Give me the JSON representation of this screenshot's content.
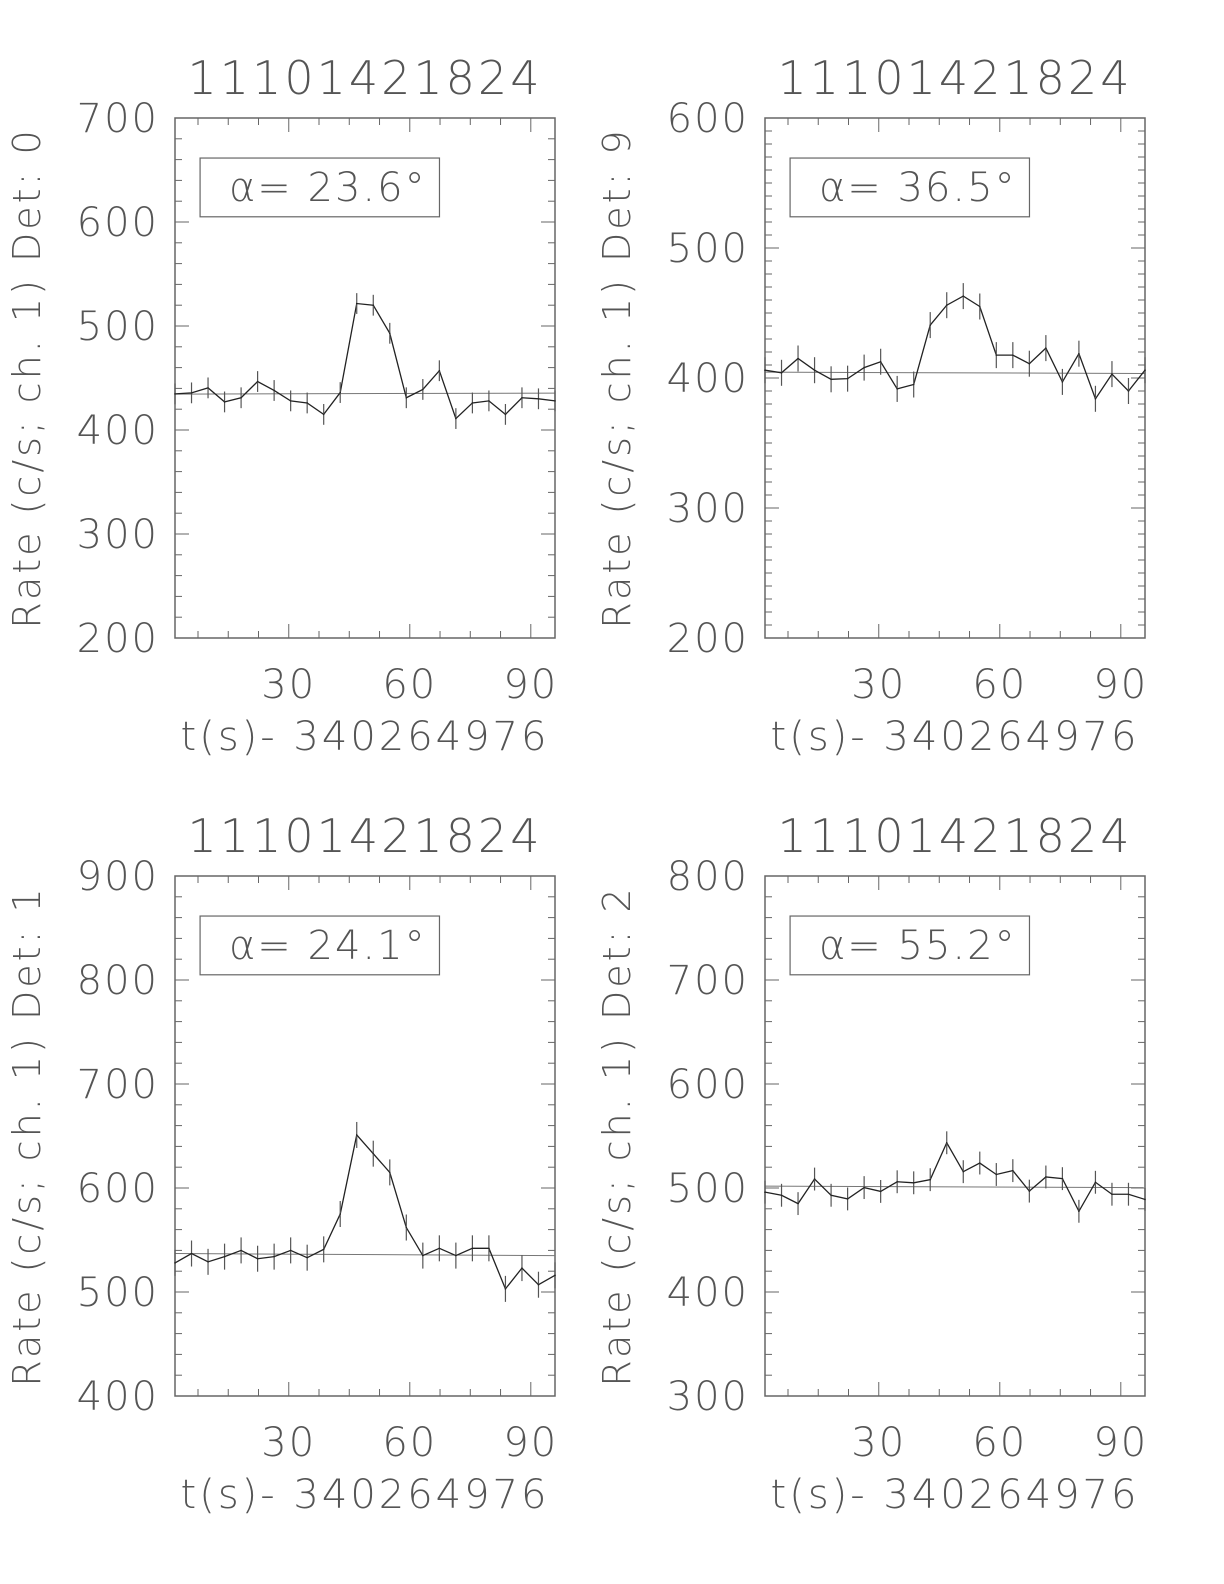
{
  "chart_data": [
    {
      "type": "line",
      "title": "11101421824",
      "xlabel": "t(s)- 340264976",
      "ylabel": "Rate (c/s; ch. 1) Det: 0",
      "annotation": "α= 23.6°",
      "xlim": [
        1.8,
        96
      ],
      "ylim": [
        200,
        700
      ],
      "xticks": [
        30,
        60,
        90
      ],
      "yticks": [
        200,
        300,
        400,
        500,
        600,
        700
      ],
      "yminor": 20,
      "yerr": 10,
      "fit": [
        434.5,
        435.5
      ],
      "y": [
        434.7,
        435.7,
        440.5,
        427,
        431,
        446.6,
        438,
        428,
        426,
        415,
        436,
        521.6,
        520,
        493,
        431,
        439,
        457,
        411,
        426,
        428,
        415,
        431,
        430,
        428
      ]
    },
    {
      "type": "line",
      "title": "11101421824",
      "xlabel": "t(s)- 340264976",
      "ylabel": "Rate (c/s; ch. 1) Det: 9",
      "annotation": "α= 36.5°",
      "xlim": [
        1.8,
        96
      ],
      "ylim": [
        200,
        600
      ],
      "xticks": [
        30,
        60,
        90
      ],
      "yticks": [
        200,
        300,
        400,
        500,
        600
      ],
      "yminor": 10,
      "yerr": 10,
      "fit": [
        404.5,
        403.5
      ],
      "y": [
        406,
        404,
        415,
        406,
        399,
        399.5,
        408,
        412.5,
        391.6,
        395,
        440.7,
        456,
        463,
        455,
        417.6,
        417.6,
        411,
        423,
        397,
        418.7,
        384,
        403,
        390,
        406
      ]
    },
    {
      "type": "line",
      "title": "11101421824",
      "xlabel": "t(s)- 340264976",
      "ylabel": "Rate (c/s; ch. 1) Det: 1",
      "annotation": "α= 24.1°",
      "xlim": [
        1.8,
        96
      ],
      "ylim": [
        400,
        900
      ],
      "xticks": [
        30,
        60,
        90
      ],
      "yticks": [
        400,
        500,
        600,
        700,
        800,
        900
      ],
      "yminor": 20,
      "yerr": 12.5,
      "fit": [
        537,
        535
      ],
      "y": [
        528,
        537,
        529,
        534,
        540,
        532,
        534,
        540,
        533,
        541,
        575,
        651,
        633,
        615,
        562,
        535,
        542,
        535,
        542,
        542,
        503,
        523,
        507,
        516
      ]
    },
    {
      "type": "line",
      "title": "11101421824",
      "xlabel": "t(s)- 340264976",
      "ylabel": "Rate (c/s; ch. 1) Det: 2",
      "annotation": "α= 55.2°",
      "xlim": [
        1.8,
        96
      ],
      "ylim": [
        300,
        800
      ],
      "xticks": [
        30,
        60,
        90
      ],
      "yticks": [
        300,
        400,
        500,
        600,
        700,
        800
      ],
      "yminor": 20,
      "yerr": 11,
      "fit": [
        501.8,
        500.4
      ],
      "y": [
        496,
        493,
        485,
        508.6,
        493,
        489.5,
        500.4,
        496.7,
        506,
        505,
        508,
        543.5,
        515.7,
        524,
        513,
        516.7,
        497,
        510.6,
        509,
        477.6,
        505.5,
        494,
        494,
        489
      ]
    }
  ]
}
